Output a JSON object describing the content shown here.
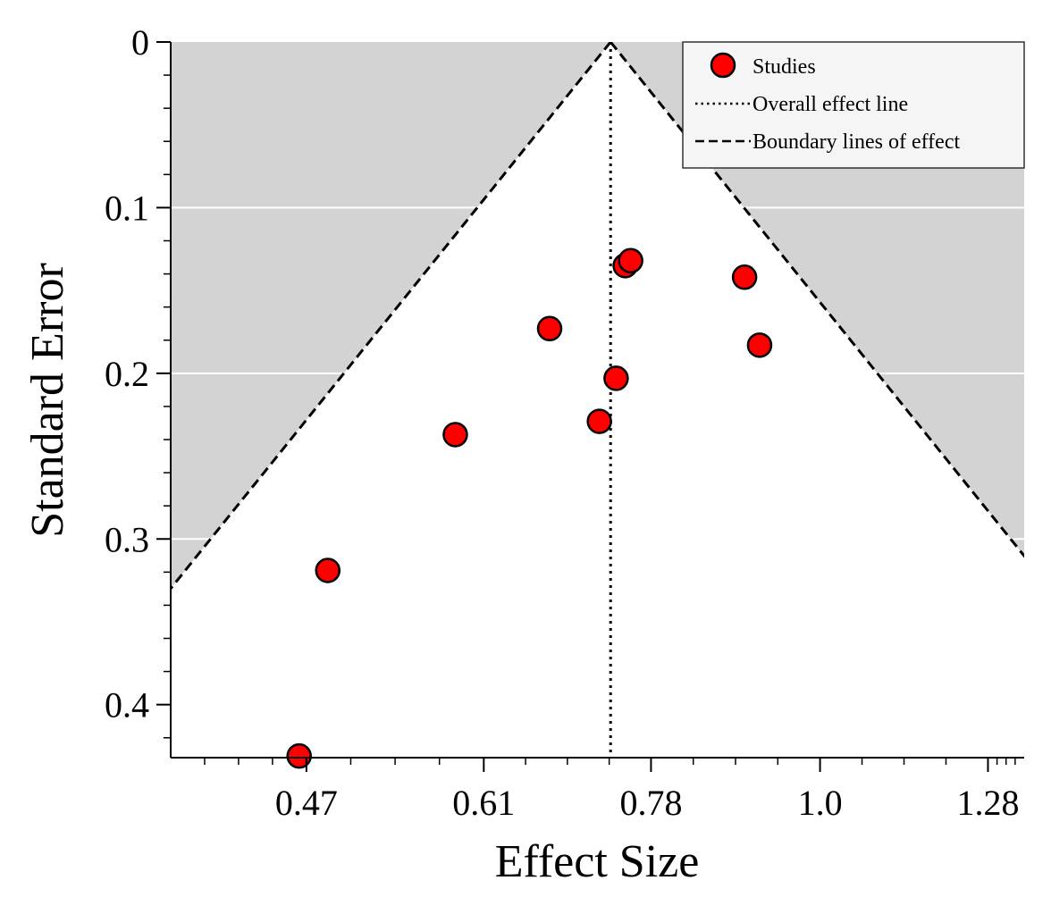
{
  "chart_data": {
    "type": "scatter",
    "title": "",
    "xlabel": "Effect Size",
    "ylabel": "Standard Error",
    "x_scale": "log",
    "y_inverted": true,
    "xlim": [
      0.385,
      1.35
    ],
    "ylim": [
      0,
      0.432
    ],
    "x_ticks": [
      "0.47",
      "0.61",
      "0.78",
      "1.0",
      "1.28"
    ],
    "x_tick_values": [
      0.47,
      0.61,
      0.78,
      1.0,
      1.28
    ],
    "y_ticks": [
      "0",
      "0.1",
      "0.2",
      "0.3",
      "0.4"
    ],
    "y_tick_values": [
      0,
      0.1,
      0.2,
      0.3,
      0.4
    ],
    "overall_effect": 0.735,
    "grid": "horizontal",
    "shaded_region": "outside funnel",
    "legend_position": "top-right",
    "series": [
      {
        "name": "Studies",
        "marker": "circle",
        "color": "#ff0000",
        "points": [
          {
            "x": 0.465,
            "y": 0.431
          },
          {
            "x": 0.485,
            "y": 0.319
          },
          {
            "x": 0.585,
            "y": 0.237
          },
          {
            "x": 0.672,
            "y": 0.173
          },
          {
            "x": 0.723,
            "y": 0.229
          },
          {
            "x": 0.741,
            "y": 0.203
          },
          {
            "x": 0.751,
            "y": 0.135
          },
          {
            "x": 0.757,
            "y": 0.132
          },
          {
            "x": 0.895,
            "y": 0.142
          },
          {
            "x": 0.915,
            "y": 0.183
          }
        ]
      }
    ],
    "legend": [
      {
        "label": "Studies",
        "style": "marker",
        "color": "#ff0000"
      },
      {
        "label": "Overall effect line",
        "style": "dotted"
      },
      {
        "label": "Boundary lines of effect",
        "style": "dashed"
      }
    ],
    "colors": {
      "background_shade": "#d3d3d3",
      "inner_funnel": "#ffffff",
      "marker_fill": "#ff0000",
      "marker_edge": "#000000",
      "legend_bg": "#f5f5f5"
    }
  }
}
